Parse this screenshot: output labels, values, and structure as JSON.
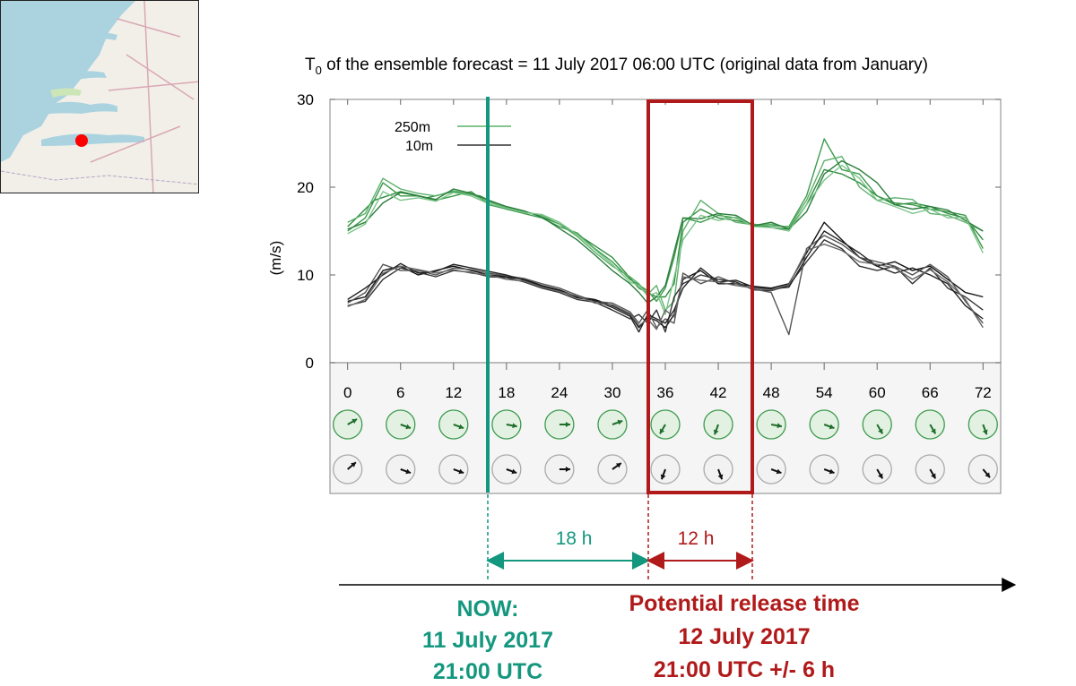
{
  "chart_data": {
    "type": "line",
    "title_prefix": "T",
    "title_sub": "0",
    "title_rest": " of the ensemble forecast = 11 July 2017 06:00 UTC (original data from January)",
    "ylabel": "(m/s)",
    "ylim": [
      0,
      30
    ],
    "yticks": [
      "0",
      "10",
      "20",
      "30"
    ],
    "xlim": [
      -2,
      74
    ],
    "xticks": [
      "0",
      "6",
      "12",
      "18",
      "24",
      "30",
      "36",
      "42",
      "48",
      "54",
      "60",
      "66",
      "72"
    ],
    "legend": {
      "green_label": "250m",
      "black_label": "10m",
      "position": "top-left"
    },
    "series": [
      {
        "name": "250m",
        "color": "#2e8b3e",
        "x": [
          0,
          3,
          6,
          9,
          12,
          15,
          18,
          21,
          24,
          27,
          30,
          33,
          34,
          35,
          36,
          37,
          38,
          40,
          42,
          44,
          46,
          48,
          50,
          52,
          54,
          56,
          58,
          60,
          62,
          64,
          66,
          68,
          70,
          72
        ],
        "values": [
          15.5,
          18.5,
          19.5,
          18.8,
          19.5,
          19.0,
          17.5,
          17.0,
          15.8,
          14.0,
          12.0,
          8.5,
          8.0,
          7.5,
          7.5,
          9.0,
          16.0,
          17.5,
          16.5,
          16.2,
          15.8,
          15.4,
          15.2,
          18.0,
          22.0,
          21.5,
          20.5,
          19.0,
          18.0,
          18.2,
          17.8,
          17.0,
          16.5,
          14.0
        ]
      },
      {
        "name": "250m",
        "color": "#3c9a4c",
        "x": [
          0,
          2,
          4,
          6,
          8,
          10,
          12,
          14,
          16,
          18,
          20,
          22,
          24,
          26,
          28,
          30,
          32,
          34,
          35,
          36,
          37,
          38,
          40,
          42,
          44,
          46,
          48,
          50,
          52,
          54,
          56,
          58,
          60,
          62,
          64,
          66,
          68,
          70,
          72
        ],
        "values": [
          15.0,
          16.5,
          20.5,
          19.0,
          19.0,
          18.5,
          19.0,
          19.5,
          18.0,
          17.5,
          17.0,
          16.5,
          15.5,
          14.8,
          13.0,
          11.5,
          9.5,
          8.2,
          7.0,
          8.5,
          12.0,
          16.5,
          16.0,
          16.8,
          16.5,
          15.6,
          15.6,
          15.5,
          19.0,
          25.5,
          22.0,
          21.5,
          19.0,
          18.2,
          18.0,
          17.5,
          17.2,
          16.8,
          13.0
        ]
      },
      {
        "name": "250m",
        "color": "#5cb06a",
        "x": [
          0,
          2,
          4,
          6,
          8,
          10,
          12,
          14,
          16,
          18,
          20,
          22,
          24,
          26,
          28,
          30,
          32,
          33,
          34,
          35,
          36,
          37,
          38,
          40,
          42,
          44,
          46,
          48,
          50,
          52,
          54,
          56,
          58,
          60,
          62,
          64,
          66,
          68,
          70,
          72
        ],
        "values": [
          16.0,
          17.0,
          21.0,
          19.8,
          19.3,
          19.0,
          19.6,
          19.2,
          18.3,
          17.7,
          17.2,
          16.8,
          15.8,
          14.4,
          12.6,
          11.0,
          9.8,
          9.0,
          7.8,
          8.8,
          6.0,
          7.0,
          15.0,
          18.5,
          17.0,
          16.0,
          15.7,
          15.8,
          15.4,
          18.5,
          23.0,
          23.5,
          20.0,
          18.5,
          18.8,
          18.6,
          17.0,
          16.8,
          16.0,
          15.0
        ]
      },
      {
        "name": "250m",
        "color": "#2a7d3a",
        "x": [
          0,
          2,
          4,
          6,
          8,
          10,
          12,
          14,
          16,
          18,
          20,
          22,
          24,
          26,
          28,
          30,
          32,
          33,
          34,
          35,
          36,
          38,
          40,
          42,
          44,
          46,
          48,
          50,
          52,
          54,
          56,
          58,
          60,
          62,
          64,
          66,
          68,
          70,
          72
        ],
        "values": [
          15.2,
          16.0,
          18.2,
          19.4,
          19.0,
          18.6,
          19.8,
          19.3,
          18.5,
          17.8,
          17.3,
          16.6,
          15.3,
          14.0,
          12.3,
          10.5,
          9.0,
          8.0,
          6.8,
          7.5,
          8.8,
          16.5,
          16.4,
          17.0,
          16.8,
          15.6,
          16.0,
          15.2,
          17.2,
          21.5,
          23.0,
          22.0,
          20.5,
          18.0,
          17.5,
          17.8,
          17.4,
          16.2,
          15.0
        ]
      },
      {
        "name": "250m",
        "color": "#7cc48a",
        "x": [
          0,
          2,
          4,
          6,
          8,
          10,
          12,
          14,
          16,
          18,
          20,
          22,
          24,
          26,
          28,
          30,
          32,
          33,
          34,
          35,
          36,
          38,
          40,
          42,
          44,
          46,
          48,
          50,
          52,
          54,
          56,
          58,
          60,
          62,
          64,
          66,
          68,
          70,
          72
        ],
        "values": [
          14.7,
          15.8,
          19.5,
          18.5,
          18.8,
          18.4,
          19.4,
          19.0,
          18.1,
          17.6,
          17.1,
          16.9,
          16.0,
          14.6,
          12.9,
          11.2,
          9.2,
          8.8,
          7.6,
          8.0,
          5.5,
          14.0,
          16.8,
          16.2,
          16.6,
          15.5,
          15.4,
          15.0,
          18.0,
          20.8,
          22.5,
          21.0,
          18.5,
          17.8,
          17.0,
          17.5,
          16.5,
          16.6,
          12.5
        ]
      },
      {
        "name": "10m",
        "color": "#111111",
        "x": [
          0,
          2,
          4,
          6,
          8,
          10,
          12,
          14,
          16,
          18,
          20,
          22,
          24,
          26,
          28,
          30,
          32,
          33,
          34,
          35,
          36,
          37,
          38,
          40,
          42,
          44,
          46,
          48,
          50,
          52,
          54,
          56,
          58,
          60,
          62,
          64,
          66,
          68,
          70,
          72
        ],
        "values": [
          7.0,
          7.5,
          10.5,
          11.0,
          10.0,
          10.5,
          11.0,
          10.5,
          10.0,
          9.8,
          9.5,
          8.8,
          8.3,
          7.5,
          7.2,
          6.5,
          5.5,
          4.0,
          5.2,
          4.8,
          4.0,
          5.5,
          9.5,
          10.5,
          9.0,
          9.0,
          8.7,
          8.5,
          9.0,
          12.5,
          16.0,
          14.0,
          12.0,
          11.0,
          11.5,
          10.5,
          11.0,
          9.5,
          8.0,
          7.5
        ]
      },
      {
        "name": "10m",
        "color": "#333333",
        "x": [
          0,
          2,
          4,
          6,
          8,
          10,
          12,
          14,
          16,
          18,
          20,
          22,
          24,
          26,
          28,
          30,
          32,
          33,
          34,
          35,
          36,
          37,
          38,
          40,
          42,
          44,
          46,
          48,
          50,
          52,
          54,
          56,
          58,
          60,
          62,
          64,
          66,
          68,
          70,
          72
        ],
        "values": [
          6.5,
          7.0,
          9.5,
          10.8,
          10.3,
          9.8,
          10.5,
          10.3,
          9.8,
          9.7,
          9.2,
          8.5,
          8.0,
          7.2,
          6.9,
          6.0,
          5.0,
          5.5,
          4.5,
          6.0,
          3.5,
          7.5,
          9.0,
          10.0,
          9.5,
          9.2,
          8.3,
          8.2,
          8.8,
          11.5,
          14.0,
          13.0,
          11.0,
          10.5,
          11.0,
          9.0,
          10.8,
          8.5,
          7.5,
          6.0
        ]
      },
      {
        "name": "10m",
        "color": "#555555",
        "x": [
          0,
          2,
          4,
          6,
          8,
          10,
          12,
          14,
          16,
          18,
          20,
          22,
          24,
          26,
          28,
          30,
          32,
          33,
          34,
          35,
          36,
          37,
          38,
          40,
          42,
          44,
          46,
          48,
          50,
          52,
          54,
          56,
          58,
          60,
          62,
          64,
          66,
          68,
          70,
          72
        ],
        "values": [
          6.8,
          8.0,
          11.2,
          10.5,
          10.5,
          10.0,
          10.8,
          10.6,
          10.2,
          9.9,
          9.6,
          9.0,
          8.5,
          7.7,
          7.0,
          6.8,
          5.8,
          4.5,
          6.0,
          4.0,
          5.0,
          4.5,
          10.2,
          9.0,
          9.8,
          9.0,
          8.4,
          8.0,
          3.2,
          13.0,
          14.5,
          13.5,
          12.0,
          11.5,
          11.0,
          10.0,
          11.2,
          9.8,
          7.0,
          4.5
        ]
      },
      {
        "name": "10m",
        "color": "#222222",
        "x": [
          0,
          2,
          4,
          6,
          8,
          10,
          12,
          14,
          16,
          18,
          20,
          22,
          24,
          26,
          28,
          30,
          32,
          33,
          34,
          35,
          36,
          37,
          38,
          40,
          42,
          44,
          46,
          48,
          50,
          52,
          54,
          56,
          58,
          60,
          62,
          64,
          66,
          68,
          70,
          72
        ],
        "values": [
          7.2,
          8.5,
          10.0,
          11.3,
          10.2,
          10.4,
          11.2,
          10.8,
          10.4,
          10.0,
          9.4,
          8.7,
          8.2,
          7.4,
          7.1,
          6.3,
          5.3,
          3.5,
          5.5,
          5.0,
          4.5,
          6.0,
          8.5,
          10.8,
          9.2,
          9.4,
          8.6,
          8.4,
          8.6,
          12.0,
          15.0,
          13.8,
          12.5,
          11.0,
          10.2,
          10.8,
          10.0,
          9.0,
          6.5,
          5.0
        ]
      },
      {
        "name": "10m",
        "color": "#666666",
        "x": [
          0,
          2,
          4,
          6,
          8,
          10,
          12,
          14,
          16,
          18,
          20,
          22,
          24,
          26,
          28,
          30,
          32,
          33,
          34,
          35,
          36,
          37,
          38,
          40,
          42,
          44,
          46,
          48,
          50,
          52,
          54,
          56,
          58,
          60,
          62,
          64,
          66,
          68,
          70,
          72
        ],
        "values": [
          6.4,
          7.2,
          10.2,
          11.0,
          10.6,
          10.2,
          10.6,
          10.2,
          10.0,
          9.5,
          9.3,
          8.6,
          8.1,
          7.6,
          6.8,
          6.6,
          5.6,
          4.2,
          5.0,
          3.8,
          6.0,
          5.2,
          9.8,
          9.4,
          9.2,
          8.8,
          8.5,
          8.3,
          8.9,
          12.8,
          13.5,
          12.8,
          11.5,
          11.2,
          10.8,
          9.5,
          10.6,
          9.2,
          7.2,
          4.0
        ]
      }
    ],
    "wind_directions": {
      "hours": [
        "0",
        "6",
        "12",
        "18",
        "24",
        "30",
        "36",
        "42",
        "48",
        "54",
        "60",
        "66",
        "72"
      ],
      "row_250m_deg": [
        60,
        110,
        110,
        100,
        90,
        70,
        210,
        200,
        100,
        110,
        150,
        150,
        160
      ],
      "row_10m_deg": [
        50,
        110,
        110,
        110,
        90,
        55,
        200,
        160,
        110,
        110,
        150,
        150,
        140
      ]
    }
  },
  "annotations": {
    "now_label_1": "NOW:",
    "now_label_2": "11 July 2017",
    "now_label_3": "21:00 UTC",
    "release_label_1": "Potential release time",
    "release_label_2": "12 July 2017",
    "release_label_3": "21:00 UTC +/- 6 h",
    "span_now": "18 h",
    "span_release": "12 h"
  },
  "colors": {
    "now": "#14977f",
    "release": "#b01a1a",
    "green_series": "#2e8b3e",
    "black_series": "#111111",
    "map_marker": "#ff0000"
  }
}
